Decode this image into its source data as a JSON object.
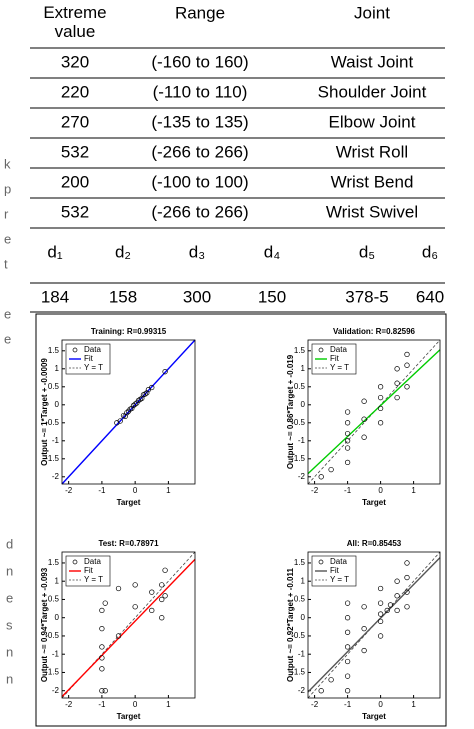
{
  "tables": {
    "joints": {
      "header": [
        "Extreme value",
        "Range",
        "Joint"
      ],
      "rows": [
        [
          "320",
          "(-160 to 160)",
          "Waist Joint"
        ],
        [
          "220",
          "(-110 to 110)",
          "Shoulder Joint"
        ],
        [
          "270",
          "(-135 to 135)",
          "Elbow Joint"
        ],
        [
          "532",
          "(-266 to 266)",
          "Wrist Roll"
        ],
        [
          "200",
          "(-100 to 100)",
          "Wrist Bend"
        ],
        [
          "532",
          "(-266 to 266)",
          "Wrist Swivel"
        ]
      ]
    },
    "lengths": {
      "header": [
        "d₁",
        "d₂",
        "d₃",
        "d₄",
        "d₅",
        "d₆"
      ],
      "values": [
        "184",
        "158",
        "300",
        "150",
        "378-5",
        "640"
      ]
    }
  },
  "margin_fragments": {
    "top": [
      "k",
      "p",
      "r",
      "e",
      "t",
      "",
      "e",
      "e"
    ],
    "bottom": [
      "d",
      "n",
      "e",
      "s",
      "n",
      "n"
    ]
  },
  "chart_data": [
    {
      "type": "scatter",
      "title": "Training: R=0.99315",
      "x_label": "Target",
      "y_label": "Output ~= 1*Target + -0.0009",
      "legend": [
        "Data",
        "Fit",
        "Y = T"
      ],
      "fit_color": "#0000ff",
      "fit": {
        "slope": 1,
        "intercept": -0.0009
      },
      "x": [
        -0.55,
        -0.45,
        -0.35,
        -0.3,
        -0.2,
        -0.15,
        -0.1,
        -0.05,
        0,
        0.05,
        0.1,
        0.15,
        0.2,
        0.25,
        0.3,
        0.4,
        0.5,
        0.9,
        0.35,
        -0.25
      ],
      "values": [
        -0.5,
        -0.45,
        -0.3,
        -0.32,
        -0.18,
        -0.12,
        -0.1,
        -0.02,
        0.02,
        0.05,
        0.12,
        0.15,
        0.18,
        0.28,
        0.3,
        0.42,
        0.48,
        0.92,
        0.33,
        -0.22
      ],
      "xlim": [
        -2.2,
        1.8
      ],
      "ylim": [
        -2.2,
        1.8
      ],
      "xticks": [
        -2,
        -1,
        0,
        1
      ],
      "yticks": [
        -2,
        -1.5,
        -1,
        -0.5,
        0,
        0.5,
        1,
        1.5
      ]
    },
    {
      "type": "scatter",
      "title": "Validation: R=0.82596",
      "x_label": "Target",
      "y_label": "Output ~= 0.86*Target + -0.019",
      "legend": [
        "Data",
        "Fit",
        "Y = T"
      ],
      "fit_color": "#00cc00",
      "fit": {
        "slope": 0.86,
        "intercept": -0.019
      },
      "x": [
        -1,
        -1,
        -1,
        -1,
        -1,
        -1,
        -0.5,
        -0.5,
        -0.5,
        0,
        0,
        0,
        0,
        0.5,
        0.5,
        0.5,
        0.8,
        0.8,
        0.8,
        -1.5,
        -1.8
      ],
      "values": [
        -1.6,
        -1.2,
        -0.8,
        -0.5,
        -0.2,
        -1.0,
        -0.9,
        -0.4,
        0.1,
        -0.5,
        -0.1,
        0.2,
        0.5,
        0.2,
        0.6,
        1.0,
        0.5,
        1.1,
        1.4,
        -1.8,
        -2.0
      ],
      "xlim": [
        -2.2,
        1.8
      ],
      "ylim": [
        -2.2,
        1.8
      ],
      "xticks": [
        -2,
        -1,
        0,
        1
      ],
      "yticks": [
        -2,
        -1.5,
        -1,
        -0.5,
        0,
        0.5,
        1,
        1.5
      ]
    },
    {
      "type": "scatter",
      "title": "Test: R=0.78971",
      "x_label": "Target",
      "y_label": "Output ~= 0.94*Target + -0.093",
      "legend": [
        "Data",
        "Fit",
        "Y = T"
      ],
      "fit_color": "#ff0000",
      "fit": {
        "slope": 0.94,
        "intercept": -0.093
      },
      "x": [
        -1,
        -1,
        -1,
        -1,
        -1,
        -1,
        -0.9,
        -0.5,
        -0.5,
        0,
        0,
        0.5,
        0.5,
        0.8,
        0.8,
        0.8,
        0.9,
        0.9,
        -0.9
      ],
      "values": [
        -2.0,
        -1.4,
        -1.1,
        -0.8,
        -0.3,
        0.2,
        0.4,
        0.8,
        -0.5,
        0.3,
        0.9,
        0.2,
        0.7,
        0.5,
        0.0,
        0.9,
        0.6,
        1.3,
        -2.0
      ],
      "xlim": [
        -2.2,
        1.8
      ],
      "ylim": [
        -2.2,
        1.8
      ],
      "xticks": [
        -2,
        -1,
        0,
        1
      ],
      "yticks": [
        -2,
        -1.5,
        -1,
        -0.5,
        0,
        0.5,
        1,
        1.5
      ]
    },
    {
      "type": "scatter",
      "title": "All: R=0.85453",
      "x_label": "Target",
      "y_label": "Output ~= 0.92*Target + -0.011",
      "legend": [
        "Data",
        "Fit",
        "Y = T"
      ],
      "fit_color": "#555555",
      "fit": {
        "slope": 0.92,
        "intercept": -0.011
      },
      "x": [
        -1,
        -1,
        -1,
        -1,
        -1,
        -1,
        -1,
        -0.5,
        -0.5,
        -0.5,
        0,
        0,
        0,
        0,
        0,
        0.5,
        0.5,
        0.5,
        0.8,
        0.8,
        0.8,
        0.8,
        -1.5,
        -1.8,
        0.2,
        0.3
      ],
      "values": [
        -2.0,
        -1.6,
        -1.2,
        -0.8,
        -0.4,
        0,
        0.4,
        -0.9,
        -0.3,
        0.3,
        -0.5,
        -0.1,
        0.1,
        0.4,
        0.8,
        0.2,
        0.6,
        1.0,
        0.3,
        0.7,
        1.1,
        1.5,
        -1.7,
        -2.0,
        0.2,
        0.35
      ],
      "xlim": [
        -2.2,
        1.8
      ],
      "ylim": [
        -2.2,
        1.8
      ],
      "xticks": [
        -2,
        -1,
        0,
        1
      ],
      "yticks": [
        -2,
        -1.5,
        -1,
        -0.5,
        0,
        0.5,
        1,
        1.5
      ]
    }
  ]
}
